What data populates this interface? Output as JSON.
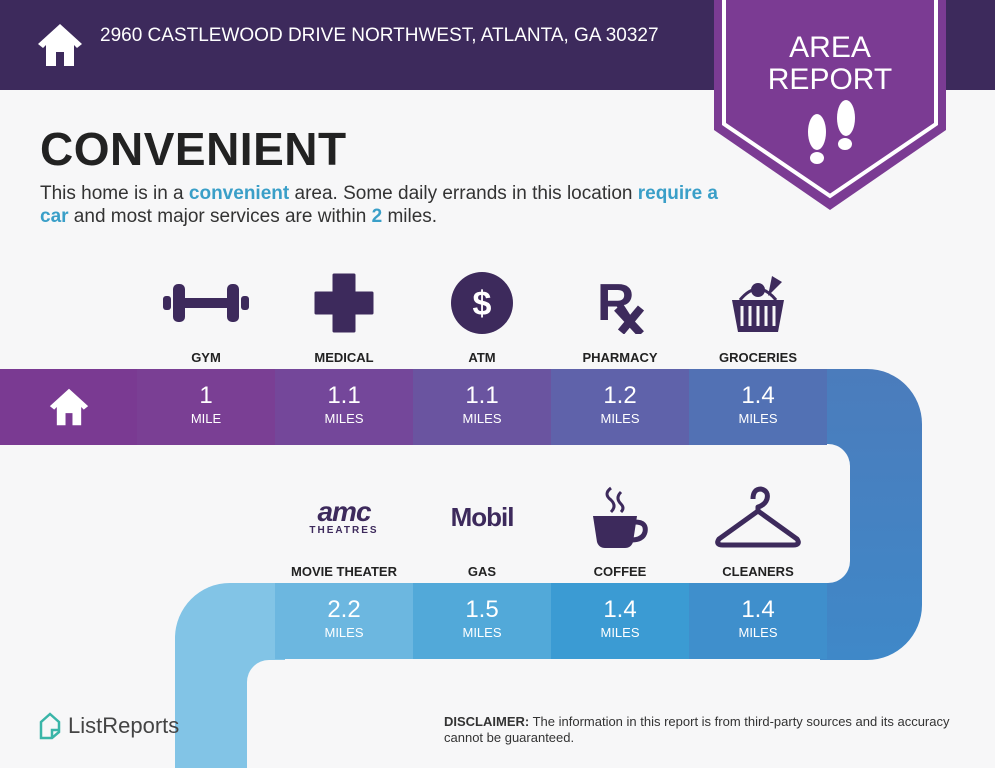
{
  "header": {
    "address": "2960 CASTLEWOOD DRIVE NORTHWEST, ATLANTA, GA 30327",
    "badge_line1": "AREA",
    "badge_line2": "REPORT"
  },
  "main": {
    "title": "CONVENIENT",
    "desc_parts": [
      "This home is in a ",
      "convenient",
      " area. Some daily errands in this location ",
      "require a car",
      " and most major services are within ",
      "2",
      " miles."
    ]
  },
  "row1": [
    {
      "label": "GYM",
      "value": "1",
      "unit": "MILE",
      "icon": "dumbbell-icon",
      "color": "#7a3f94"
    },
    {
      "label": "MEDICAL",
      "value": "1.1",
      "unit": "MILES",
      "icon": "medical-cross-icon",
      "color": "#74479a"
    },
    {
      "label": "ATM",
      "value": "1.1",
      "unit": "MILES",
      "icon": "dollar-icon",
      "color": "#6a54a0"
    },
    {
      "label": "PHARMACY",
      "value": "1.2",
      "unit": "MILES",
      "icon": "rx-icon",
      "color": "#5f62aa"
    },
    {
      "label": "GROCERIES",
      "value": "1.4",
      "unit": "MILES",
      "icon": "grocery-basket-icon",
      "color": "#5271b4"
    }
  ],
  "row2": [
    {
      "label": "MOVIE THEATER",
      "value": "2.2",
      "unit": "MILES",
      "icon": "amc-logo",
      "logo_text": "AMC",
      "logo_sub": "THEATRES",
      "color": "#6cb7e0"
    },
    {
      "label": "GAS",
      "value": "1.5",
      "unit": "MILES",
      "icon": "mobil-logo",
      "logo_text": "Mobil",
      "color": "#52a9d9"
    },
    {
      "label": "COFFEE",
      "value": "1.4",
      "unit": "MILES",
      "icon": "coffee-cup-icon",
      "color": "#3b9bd3"
    },
    {
      "label": "CLEANERS",
      "value": "1.4",
      "unit": "MILES",
      "icon": "hanger-icon",
      "color": "#3f8fcc"
    }
  ],
  "colors": {
    "header": "#3d2a5c",
    "badge": "#7b3b93",
    "icon": "#3d2a5c",
    "highlight": "#3a9fc8"
  },
  "footer": {
    "brand": "ListReports",
    "disclaimer_label": "DISCLAIMER:",
    "disclaimer": " The information in this report is from third-party sources and its accuracy cannot be guaranteed."
  }
}
